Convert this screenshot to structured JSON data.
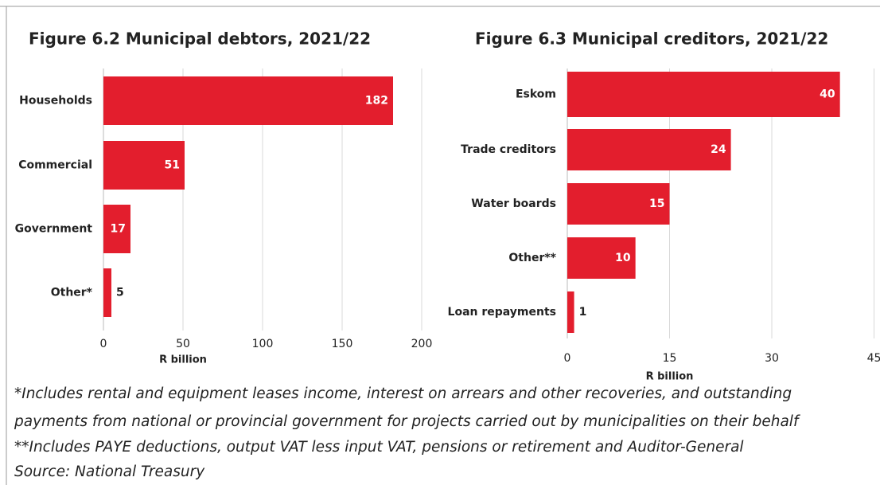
{
  "chart_data": [
    {
      "type": "barh",
      "title": "Figure 6.2 Municipal debtors, 2021/22",
      "categories": [
        "Households",
        "Commercial",
        "Government",
        "Other*"
      ],
      "values": [
        182,
        51,
        17,
        5
      ],
      "color": "#e31e2d",
      "xlim": [
        0,
        200
      ],
      "xticks": [
        0,
        50,
        100,
        150,
        200
      ],
      "xlabel": "R billion",
      "grid": true
    },
    {
      "type": "barh",
      "title": "Figure 6.3 Municipal creditors, 2021/22",
      "categories": [
        "Eskom",
        "Trade creditors",
        "Water boards",
        "Other**",
        "Loan repayments"
      ],
      "values": [
        40,
        24,
        15,
        10,
        1
      ],
      "color": "#e31e2d",
      "xlim": [
        0,
        45
      ],
      "xticks": [
        0,
        15,
        30,
        45
      ],
      "xlabel": "R billion",
      "grid": true
    }
  ],
  "notes": [
    "*Includes rental and equipment leases income, interest on arrears and other recoveries, and outstanding",
    "payments from national or provincial government for projects carried out by municipalities on their behalf",
    "**Includes PAYE deductions, output VAT less input VAT, pensions or retirement and Auditor-General",
    "Source: National Treasury"
  ]
}
